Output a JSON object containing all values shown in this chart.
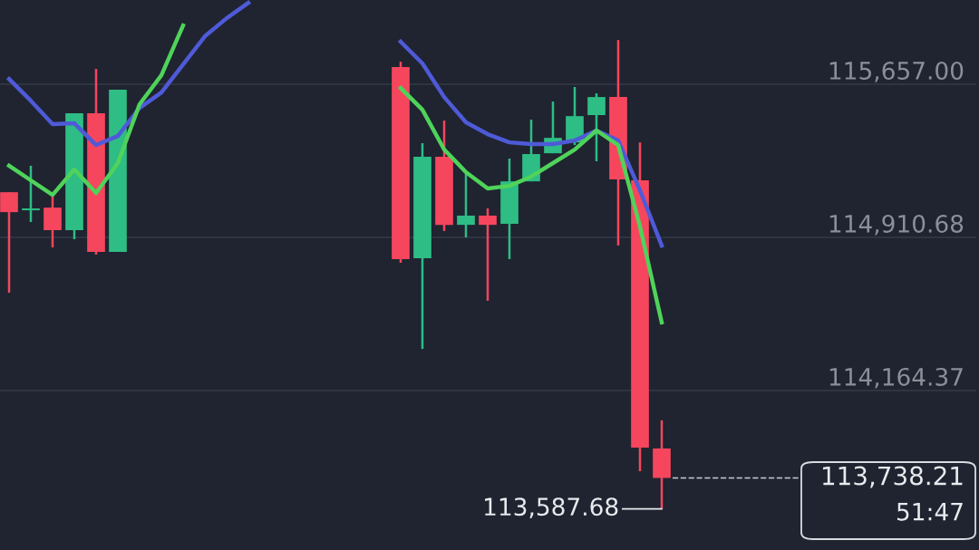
{
  "chart_data": {
    "type": "candlestick",
    "categories": [
      null,
      null,
      null,
      null,
      null,
      null,
      null,
      null,
      null,
      null,
      null,
      null,
      null,
      null,
      null,
      null,
      null,
      null,
      null,
      null,
      null,
      null,
      null,
      null,
      null,
      null,
      null,
      null,
      null,
      null,
      null,
      null,
      null,
      null,
      null,
      null,
      null,
      null,
      null,
      null,
      null,
      null,
      null,
      null,
      null
    ],
    "ohlc": [
      [
        115131,
        115131,
        114641,
        115034
      ],
      [
        115043,
        115260,
        114986,
        115052
      ],
      [
        115056,
        115109,
        114862,
        114946
      ],
      [
        114946,
        115516,
        114902,
        115516
      ],
      [
        115516,
        115732,
        114827,
        114840
      ],
      [
        114840,
        115631,
        114840,
        115631
      ],
      null,
      null,
      null,
      null,
      null,
      null,
      null,
      null,
      null,
      null,
      null,
      null,
      [
        115741,
        115767,
        114787,
        114805
      ],
      [
        114809,
        115370,
        114367,
        115304
      ],
      [
        115304,
        115480,
        114942,
        114972
      ],
      [
        114972,
        115220,
        114911,
        115017
      ],
      [
        115017,
        115052,
        114602,
        114972
      ],
      [
        114977,
        115295,
        114805,
        115184
      ],
      [
        115184,
        115485,
        115184,
        115317
      ],
      [
        115321,
        115573,
        115321,
        115396
      ],
      [
        115374,
        115644,
        115361,
        115502
      ],
      [
        115507,
        115613,
        115282,
        115595
      ],
      [
        115595,
        115873,
        114871,
        115193
      ],
      [
        115189,
        115374,
        113771,
        113886
      ],
      [
        113882,
        114019,
        113587.68,
        113738.21
      ],
      null,
      null,
      null,
      null,
      null,
      null,
      null,
      null,
      null,
      null,
      null,
      null,
      null,
      null
    ],
    "colors": [
      "#f6465d",
      "#2ebd85",
      "#f6465d",
      "#2ebd85",
      "#f6465d",
      "#2ebd85",
      null,
      null,
      null,
      null,
      null,
      null,
      null,
      null,
      null,
      null,
      null,
      null,
      "#f6465d",
      "#2ebd85",
      "#f6465d",
      "#2ebd85",
      "#f6465d",
      "#2ebd85",
      "#2ebd85",
      "#2ebd85",
      "#2ebd85",
      "#2ebd85",
      "#f6465d",
      "#f6465d",
      "#f6465d",
      null,
      null,
      null,
      null,
      null,
      null,
      null,
      null,
      null,
      null,
      null,
      null,
      null,
      null
    ],
    "series": [
      {
        "type": "line",
        "color": "#4f5ad8",
        "values": [
          115683,
          115577,
          115463,
          115467,
          115361,
          115405,
          115542,
          115617,
          115754,
          115891,
          115979,
          116054,
          null,
          null,
          null,
          null,
          null,
          null,
          115865,
          115759,
          115595,
          115472,
          115414,
          115374,
          115366,
          115366,
          115383,
          115432,
          115383,
          115140,
          114871,
          null,
          null,
          null,
          null,
          null,
          null,
          null,
          null,
          null,
          null,
          null,
          null,
          null,
          null
        ]
      },
      {
        "type": "line",
        "color": "#4fd35a",
        "values": [
          115260,
          115189,
          115118,
          115242,
          115127,
          115273,
          115560,
          115701,
          115944,
          null,
          null,
          null,
          null,
          null,
          null,
          null,
          null,
          null,
          115639,
          115533,
          115339,
          115229,
          115149,
          115162,
          115207,
          115273,
          115339,
          115432,
          115361,
          114964,
          114496,
          null,
          null,
          null,
          null,
          null,
          null,
          null,
          null,
          null,
          null,
          null,
          null,
          null,
          null
        ]
      }
    ],
    "ylim": [
      113387,
      116068
    ],
    "yticks": [
      {
        "value": 114164.37,
        "label": "114,164.37"
      },
      {
        "value": 114910.68,
        "label": "114,910.68"
      },
      {
        "value": 115657.0,
        "label": "115,657.00"
      }
    ],
    "grid": "y",
    "tick_labels": "y",
    "line_style": "solid",
    "marker": "none",
    "ref_lines": [
      {
        "axis": "y",
        "value": 113738.21,
        "label": "113,738.21",
        "line_style": "dashed",
        "color": "#c8ccd4"
      }
    ],
    "annotations": [
      "113,587.68",
      "51:47"
    ]
  }
}
